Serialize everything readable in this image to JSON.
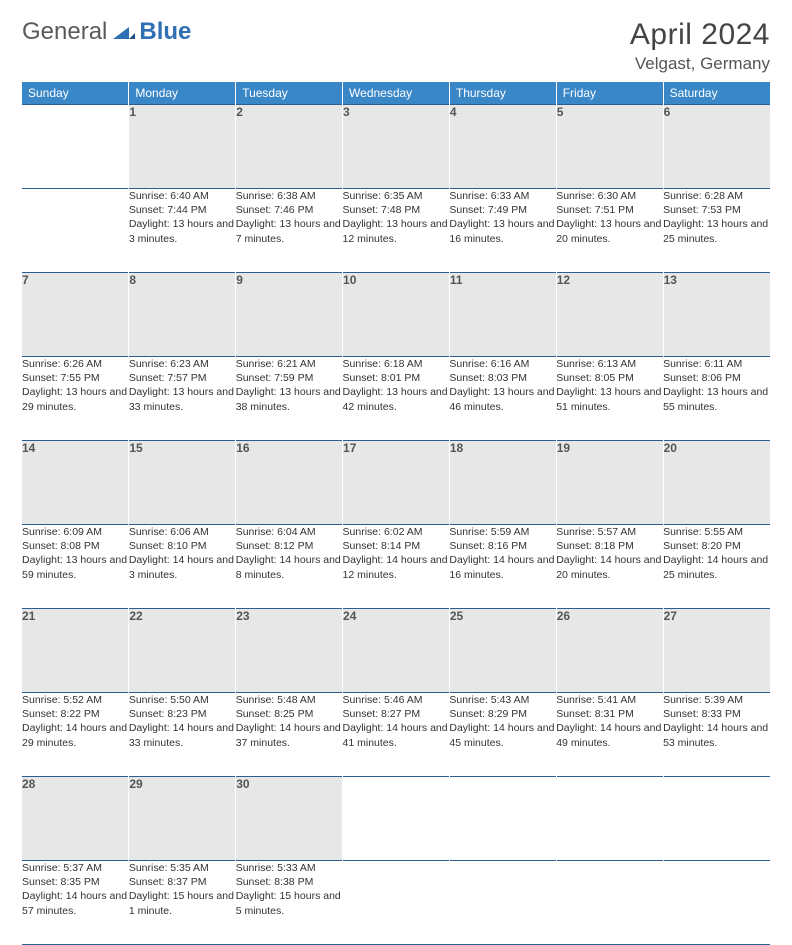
{
  "brand": {
    "general": "General",
    "blue": "Blue"
  },
  "title": "April 2024",
  "location": "Velgast, Germany",
  "colors": {
    "header_bg": "#3a87c8",
    "header_fg": "#ffffff",
    "row_border": "#2a5f8f",
    "daynum_bg": "#e7e7e7",
    "brand_blue": "#2f6fb3"
  },
  "day_headers": [
    "Sunday",
    "Monday",
    "Tuesday",
    "Wednesday",
    "Thursday",
    "Friday",
    "Saturday"
  ],
  "weeks": [
    [
      null,
      {
        "n": "1",
        "sr": "6:40 AM",
        "ss": "7:44 PM",
        "dl": "13 hours and 3 minutes."
      },
      {
        "n": "2",
        "sr": "6:38 AM",
        "ss": "7:46 PM",
        "dl": "13 hours and 7 minutes."
      },
      {
        "n": "3",
        "sr": "6:35 AM",
        "ss": "7:48 PM",
        "dl": "13 hours and 12 minutes."
      },
      {
        "n": "4",
        "sr": "6:33 AM",
        "ss": "7:49 PM",
        "dl": "13 hours and 16 minutes."
      },
      {
        "n": "5",
        "sr": "6:30 AM",
        "ss": "7:51 PM",
        "dl": "13 hours and 20 minutes."
      },
      {
        "n": "6",
        "sr": "6:28 AM",
        "ss": "7:53 PM",
        "dl": "13 hours and 25 minutes."
      }
    ],
    [
      {
        "n": "7",
        "sr": "6:26 AM",
        "ss": "7:55 PM",
        "dl": "13 hours and 29 minutes."
      },
      {
        "n": "8",
        "sr": "6:23 AM",
        "ss": "7:57 PM",
        "dl": "13 hours and 33 minutes."
      },
      {
        "n": "9",
        "sr": "6:21 AM",
        "ss": "7:59 PM",
        "dl": "13 hours and 38 minutes."
      },
      {
        "n": "10",
        "sr": "6:18 AM",
        "ss": "8:01 PM",
        "dl": "13 hours and 42 minutes."
      },
      {
        "n": "11",
        "sr": "6:16 AM",
        "ss": "8:03 PM",
        "dl": "13 hours and 46 minutes."
      },
      {
        "n": "12",
        "sr": "6:13 AM",
        "ss": "8:05 PM",
        "dl": "13 hours and 51 minutes."
      },
      {
        "n": "13",
        "sr": "6:11 AM",
        "ss": "8:06 PM",
        "dl": "13 hours and 55 minutes."
      }
    ],
    [
      {
        "n": "14",
        "sr": "6:09 AM",
        "ss": "8:08 PM",
        "dl": "13 hours and 59 minutes."
      },
      {
        "n": "15",
        "sr": "6:06 AM",
        "ss": "8:10 PM",
        "dl": "14 hours and 3 minutes."
      },
      {
        "n": "16",
        "sr": "6:04 AM",
        "ss": "8:12 PM",
        "dl": "14 hours and 8 minutes."
      },
      {
        "n": "17",
        "sr": "6:02 AM",
        "ss": "8:14 PM",
        "dl": "14 hours and 12 minutes."
      },
      {
        "n": "18",
        "sr": "5:59 AM",
        "ss": "8:16 PM",
        "dl": "14 hours and 16 minutes."
      },
      {
        "n": "19",
        "sr": "5:57 AM",
        "ss": "8:18 PM",
        "dl": "14 hours and 20 minutes."
      },
      {
        "n": "20",
        "sr": "5:55 AM",
        "ss": "8:20 PM",
        "dl": "14 hours and 25 minutes."
      }
    ],
    [
      {
        "n": "21",
        "sr": "5:52 AM",
        "ss": "8:22 PM",
        "dl": "14 hours and 29 minutes."
      },
      {
        "n": "22",
        "sr": "5:50 AM",
        "ss": "8:23 PM",
        "dl": "14 hours and 33 minutes."
      },
      {
        "n": "23",
        "sr": "5:48 AM",
        "ss": "8:25 PM",
        "dl": "14 hours and 37 minutes."
      },
      {
        "n": "24",
        "sr": "5:46 AM",
        "ss": "8:27 PM",
        "dl": "14 hours and 41 minutes."
      },
      {
        "n": "25",
        "sr": "5:43 AM",
        "ss": "8:29 PM",
        "dl": "14 hours and 45 minutes."
      },
      {
        "n": "26",
        "sr": "5:41 AM",
        "ss": "8:31 PM",
        "dl": "14 hours and 49 minutes."
      },
      {
        "n": "27",
        "sr": "5:39 AM",
        "ss": "8:33 PM",
        "dl": "14 hours and 53 minutes."
      }
    ],
    [
      {
        "n": "28",
        "sr": "5:37 AM",
        "ss": "8:35 PM",
        "dl": "14 hours and 57 minutes."
      },
      {
        "n": "29",
        "sr": "5:35 AM",
        "ss": "8:37 PM",
        "dl": "15 hours and 1 minute."
      },
      {
        "n": "30",
        "sr": "5:33 AM",
        "ss": "8:38 PM",
        "dl": "15 hours and 5 minutes."
      },
      null,
      null,
      null,
      null
    ]
  ],
  "labels": {
    "sunrise": "Sunrise:",
    "sunset": "Sunset:",
    "daylight": "Daylight:"
  }
}
